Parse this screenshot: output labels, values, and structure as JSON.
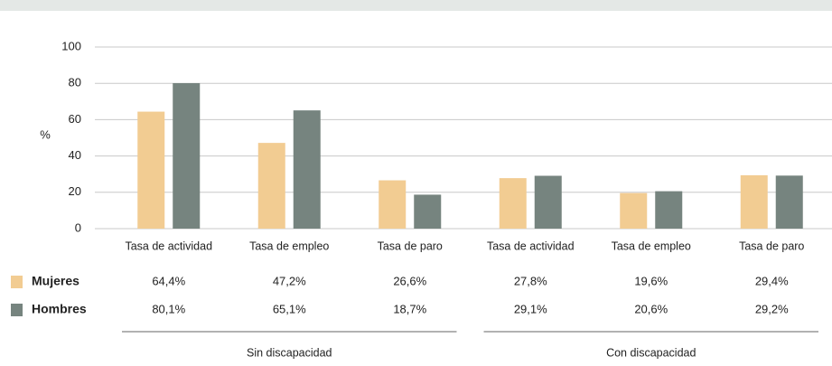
{
  "chart_data": {
    "type": "bar",
    "y_label": "%",
    "categories": [
      "Tasa de actividad",
      "Tasa de empleo",
      "Tasa de paro",
      "Tasa de actividad",
      "Tasa de empleo",
      "Tasa de paro"
    ],
    "groups": [
      "Sin discapacidad",
      "Con discapacidad"
    ],
    "series": [
      {
        "name": "Mujeres",
        "color": "#f2cc92",
        "values": [
          64.4,
          47.2,
          26.6,
          27.8,
          19.6,
          29.4
        ],
        "value_labels": [
          "64,4%",
          "47,2%",
          "26,6%",
          "27,8%",
          "19,6%",
          "29,4%"
        ]
      },
      {
        "name": "Hombres",
        "color": "#76847f",
        "values": [
          80.1,
          65.1,
          18.7,
          29.1,
          20.6,
          29.2
        ],
        "value_labels": [
          "80,1%",
          "65,1%",
          "18,7%",
          "29,1%",
          "20,6%",
          "29,2%"
        ]
      }
    ],
    "ylim": [
      0,
      100
    ],
    "yticks": [
      0,
      20,
      40,
      60,
      80,
      100
    ],
    "grid": true
  }
}
